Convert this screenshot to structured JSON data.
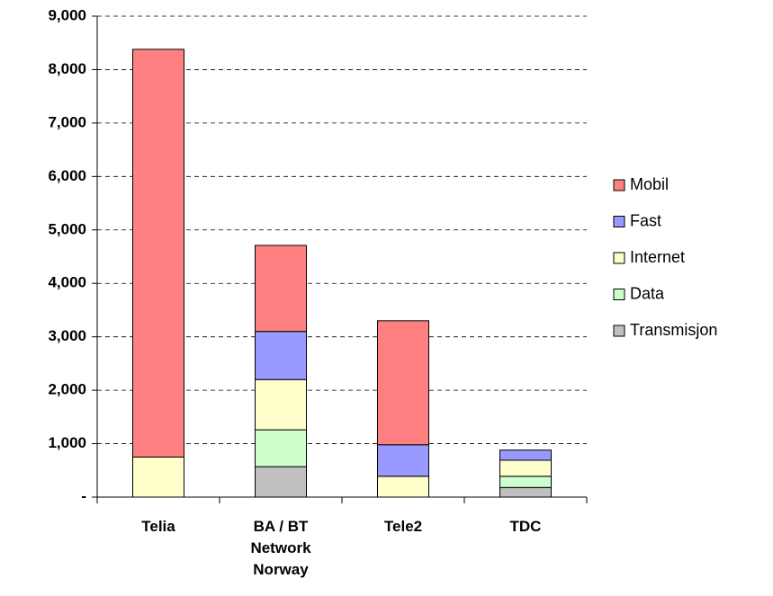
{
  "chart_data": {
    "type": "stacked_bar",
    "categories": [
      "Telia",
      "BA / BT\nNetwork\nNorway",
      "Tele2",
      "TDC"
    ],
    "series": [
      {
        "name": "Transmisjon",
        "color": "#c0c0c0",
        "values": [
          0,
          570,
          0,
          180
        ]
      },
      {
        "name": "Data",
        "color": "#ccffcc",
        "values": [
          0,
          690,
          0,
          210
        ]
      },
      {
        "name": "Internet",
        "color": "#ffffcc",
        "values": [
          750,
          940,
          390,
          300
        ]
      },
      {
        "name": "Fast",
        "color": "#9999ff",
        "values": [
          0,
          900,
          590,
          190
        ]
      },
      {
        "name": "Mobil",
        "color": "#ff8080",
        "values": [
          7630,
          1610,
          2320,
          0
        ]
      }
    ],
    "ylim": [
      0,
      9000
    ],
    "yticks": [
      {
        "value": 0,
        "label": "-"
      },
      {
        "value": 1000,
        "label": "1,000"
      },
      {
        "value": 2000,
        "label": "2,000"
      },
      {
        "value": 3000,
        "label": "3,000"
      },
      {
        "value": 4000,
        "label": "4,000"
      },
      {
        "value": 5000,
        "label": "5,000"
      },
      {
        "value": 6000,
        "label": "6,000"
      },
      {
        "value": 7000,
        "label": "7,000"
      },
      {
        "value": 8000,
        "label": "8,000"
      },
      {
        "value": 9000,
        "label": "9,000"
      }
    ],
    "grid": true,
    "legend": "right"
  }
}
